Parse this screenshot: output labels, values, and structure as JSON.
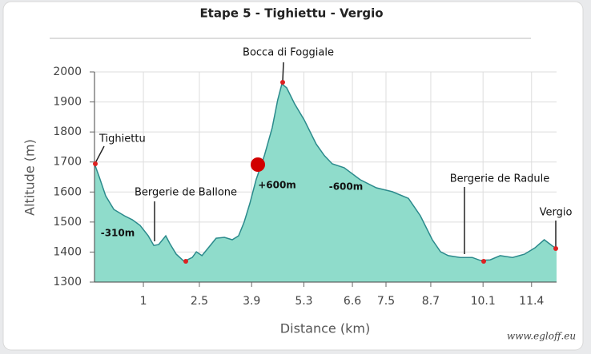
{
  "chart_data": {
    "type": "area",
    "title": "Etape 5 - Tighiettu - Vergio",
    "x_label": "Distance (km)",
    "y_label": "Altitude (m)",
    "watermark": "www.egloff.eu",
    "color": "#8fdccb",
    "line_color": "#2b8a8c",
    "grid": true,
    "x": [
      -0.31,
      -0.18,
      -0.01,
      0.21,
      0.49,
      0.7,
      0.91,
      1.13,
      1.28,
      1.41,
      1.6,
      1.71,
      1.88,
      2.09,
      2.31,
      2.42,
      2.57,
      2.78,
      2.95,
      3.17,
      3.38,
      3.55,
      3.7,
      3.85,
      4.02,
      4.24,
      4.45,
      4.6,
      4.71,
      4.84,
      5.05,
      5.31,
      5.63,
      5.85,
      6.06,
      6.38,
      6.81,
      7.24,
      7.67,
      8.1,
      8.42,
      8.74,
      8.96,
      9.17,
      9.49,
      9.81,
      10.03,
      10.29,
      10.56,
      10.89,
      11.21,
      11.49,
      11.74,
      11.96,
      12.07
    ],
    "values": [
      1694,
      1649,
      1587,
      1542,
      1521,
      1508,
      1489,
      1454,
      1422,
      1425,
      1454,
      1428,
      1393,
      1369,
      1382,
      1401,
      1388,
      1420,
      1446,
      1449,
      1441,
      1454,
      1500,
      1561,
      1641,
      1721,
      1814,
      1907,
      1960,
      1947,
      1894,
      1840,
      1760,
      1721,
      1694,
      1681,
      1641,
      1614,
      1601,
      1579,
      1521,
      1441,
      1401,
      1388,
      1382,
      1382,
      1372,
      1374,
      1388,
      1382,
      1393,
      1414,
      1441,
      1420,
      1412
    ],
    "xlim": [
      -0.31,
      12.07
    ],
    "ylim": [
      1300,
      2000
    ],
    "xticks": [
      1,
      2.5,
      3.9,
      5.3,
      6.6,
      7.5,
      8.7,
      10.1,
      11.4
    ],
    "yticks": [
      1300,
      1400,
      1500,
      1600,
      1700,
      1800,
      1900,
      2000
    ],
    "annotations": [
      "Tighiettu",
      "Bocca di Foggiale",
      "Bergerie de Ballone",
      "Bergerie de Radule",
      "Vergio",
      "-310m",
      "+600m",
      "-600m"
    ]
  }
}
